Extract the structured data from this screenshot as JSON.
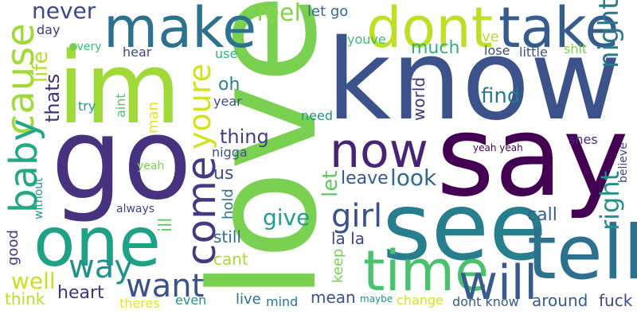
{
  "words": [
    {
      "key": "love",
      "text": "love",
      "color": "#7ad151"
    },
    {
      "key": "know",
      "text": "know",
      "color": "#3b528b"
    },
    {
      "key": "go",
      "text": "go",
      "color": "#46327e"
    },
    {
      "key": "say",
      "text": "say",
      "color": "#440154"
    },
    {
      "key": "im",
      "text": "im",
      "color": "#a0da39"
    },
    {
      "key": "see",
      "text": "see",
      "color": "#277f8e"
    },
    {
      "key": "one",
      "text": "one",
      "color": "#1fa187"
    },
    {
      "key": "make",
      "text": "make",
      "color": "#2c728e"
    },
    {
      "key": "dont",
      "text": "dont",
      "color": "#bddf26"
    },
    {
      "key": "take",
      "text": "take",
      "color": "#365c8d"
    },
    {
      "key": "tell",
      "text": "tell",
      "color": "#2c728e"
    },
    {
      "key": "time",
      "text": "time",
      "color": "#4ac16d"
    },
    {
      "key": "now",
      "text": "now",
      "color": "#482475"
    },
    {
      "key": "will",
      "text": "will",
      "color": "#365c8d"
    },
    {
      "key": "cause",
      "text": "cause",
      "color": "#a0da39"
    },
    {
      "key": "baby",
      "text": "baby",
      "color": "#22a884"
    },
    {
      "key": "come",
      "text": "come",
      "color": "#443983"
    },
    {
      "key": "youre",
      "text": "youre",
      "color": "#d2e21b"
    },
    {
      "key": "girl",
      "text": "girl",
      "color": "#3b528b"
    },
    {
      "key": "way",
      "text": "way",
      "color": "#21918c"
    },
    {
      "key": "want",
      "text": "want",
      "color": "#3b528b"
    },
    {
      "key": "never",
      "text": "never",
      "color": "#3e4989"
    },
    {
      "key": "night",
      "text": "night",
      "color": "#2a788e"
    },
    {
      "key": "right",
      "text": "right",
      "color": "#21918c"
    },
    {
      "key": "feel",
      "text": "feel",
      "color": "#86d549"
    },
    {
      "key": "look",
      "text": "look",
      "color": "#31688e"
    },
    {
      "key": "give",
      "text": "give",
      "color": "#1f9e89"
    },
    {
      "key": "well",
      "text": "well",
      "color": "#c8e020"
    },
    {
      "key": "find",
      "text": "find",
      "color": "#2a788e"
    },
    {
      "key": "life",
      "text": "life",
      "color": "#b5de2b"
    },
    {
      "key": "thats",
      "text": "thats",
      "color": "#472d7b"
    },
    {
      "key": "much",
      "text": "much",
      "color": "#2db27d"
    },
    {
      "key": "leave",
      "text": "leave",
      "color": "#38598c"
    },
    {
      "key": "let",
      "text": "let",
      "color": "#5ec962"
    },
    {
      "key": "thing",
      "text": "thing",
      "color": "#424086"
    },
    {
      "key": "heart",
      "text": "heart",
      "color": "#46337e"
    },
    {
      "key": "call",
      "text": "call",
      "color": "#34618d"
    },
    {
      "key": "fuck",
      "text": "fuck",
      "color": "#3e4a89"
    },
    {
      "key": "around",
      "text": "around",
      "color": "#365c8d"
    },
    {
      "key": "world",
      "text": "world",
      "color": "#46327e"
    },
    {
      "key": "oh",
      "text": "oh",
      "color": "#26828e"
    },
    {
      "key": "day",
      "text": "day",
      "color": "#453781"
    },
    {
      "key": "hear",
      "text": "hear",
      "color": "#3f4788"
    },
    {
      "key": "ive",
      "text": "ive",
      "color": "#b8de29"
    },
    {
      "key": "lose",
      "text": "lose",
      "color": "#3e4a89"
    },
    {
      "key": "little",
      "text": "little",
      "color": "#39558c"
    },
    {
      "key": "shit",
      "text": "shit",
      "color": "#7fd34e"
    },
    {
      "key": "youve",
      "text": "youve",
      "color": "#3dbc74"
    },
    {
      "key": "letgo",
      "text": "let go",
      "color": "#2f6c8e"
    },
    {
      "key": "every",
      "text": "every",
      "color": "#3dbc74"
    },
    {
      "key": "use",
      "text": "use",
      "color": "#2db27d"
    },
    {
      "key": "try",
      "text": "try",
      "color": "#1f9e89"
    },
    {
      "key": "aint",
      "text": "aint",
      "color": "#54c568"
    },
    {
      "key": "man",
      "text": "man",
      "color": "#e5e419"
    },
    {
      "key": "year",
      "text": "year",
      "color": "#3e4a89"
    },
    {
      "key": "need",
      "text": "need",
      "color": "#20928c"
    },
    {
      "key": "nigga",
      "text": "nigga",
      "color": "#3b528b"
    },
    {
      "key": "us",
      "text": "us",
      "color": "#3b528b"
    },
    {
      "key": "hold",
      "text": "hold",
      "color": "#2c728e"
    },
    {
      "key": "still",
      "text": "still",
      "color": "#2d708e"
    },
    {
      "key": "cant",
      "text": "cant",
      "color": "#a8db34"
    },
    {
      "key": "ill",
      "text": "ill",
      "color": "#5ec962"
    },
    {
      "key": "always",
      "text": "always",
      "color": "#3f4788"
    },
    {
      "key": "yeah",
      "text": "yeah",
      "color": "#7ad151"
    },
    {
      "key": "without",
      "text": "without",
      "color": "#1f9a8a"
    },
    {
      "key": "good",
      "text": "good",
      "color": "#453781"
    },
    {
      "key": "think",
      "text": "think",
      "color": "#b8de29"
    },
    {
      "key": "theres",
      "text": "theres",
      "color": "#e5e419"
    },
    {
      "key": "even",
      "text": "even",
      "color": "#21918c"
    },
    {
      "key": "live",
      "text": "live",
      "color": "#2d708e"
    },
    {
      "key": "mind",
      "text": "mind",
      "color": "#2a788e"
    },
    {
      "key": "mean",
      "text": "mean",
      "color": "#3b528b"
    },
    {
      "key": "keep",
      "text": "keep",
      "color": "#7ad151"
    },
    {
      "key": "lala",
      "text": "la la",
      "color": "#3f4788"
    },
    {
      "key": "maybe",
      "text": "maybe",
      "color": "#21918c"
    },
    {
      "key": "change",
      "text": "change",
      "color": "#d8e219"
    },
    {
      "key": "dontknow",
      "text": "dont know",
      "color": "#38598c"
    },
    {
      "key": "shes",
      "text": "shes",
      "color": "#482878"
    },
    {
      "key": "yeahyeah",
      "text": "yeah yeah",
      "color": "#440154"
    },
    {
      "key": "believe",
      "text": "believe",
      "color": "#3e4a89"
    }
  ]
}
